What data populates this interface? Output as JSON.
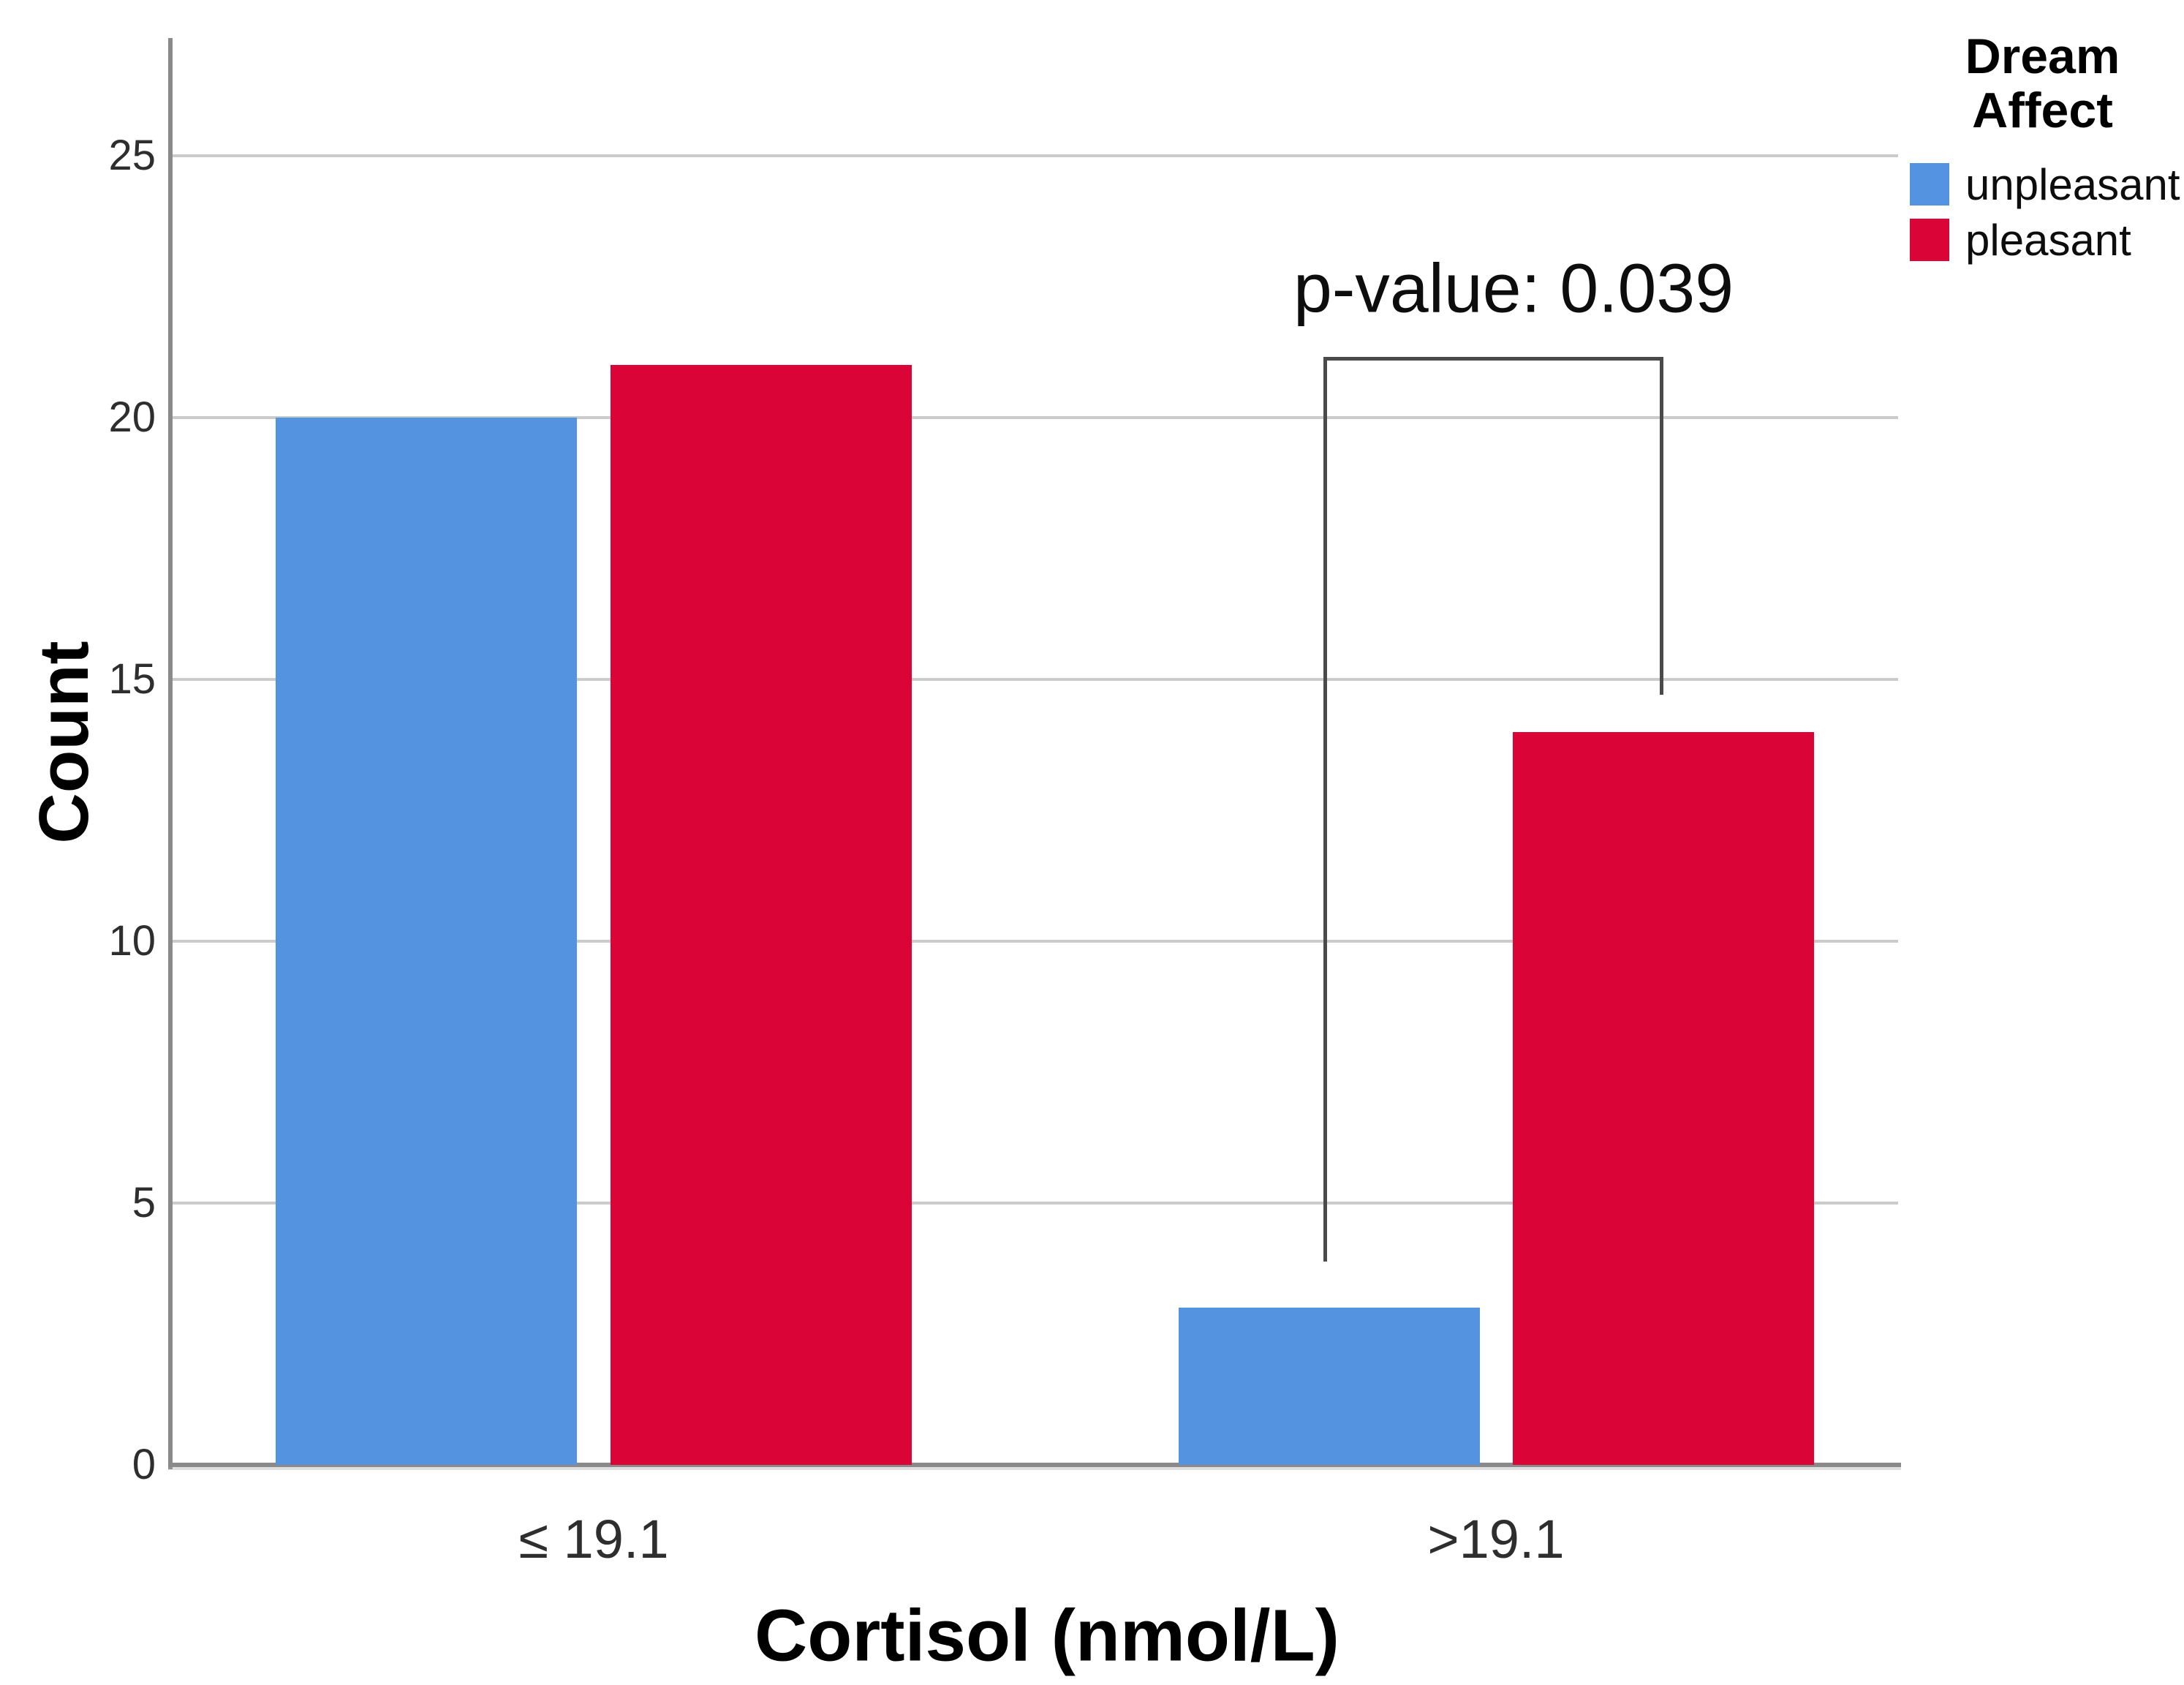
{
  "chart_data": {
    "type": "bar",
    "title": "",
    "categories": [
      "≤ 19.1",
      ">19.1"
    ],
    "series": [
      {
        "name": "unpleasant",
        "color": "#5493E0",
        "values": [
          20,
          3
        ]
      },
      {
        "name": "pleasant",
        "color": "#DB0437",
        "values": [
          21,
          14
        ]
      }
    ],
    "xlabel": "Cortisol (nmol/L)",
    "ylabel": "Count",
    "ylim": [
      0,
      27
    ],
    "yticks": [
      0,
      5,
      10,
      15,
      20,
      25
    ],
    "grid": "horizontal",
    "legend_position": "top-right",
    "annotation": {
      "text": "p-value: 0.039",
      "connects": [
        "unpleasant at >19.1",
        "pleasant at >19.1"
      ]
    }
  },
  "legend": {
    "title_line1": "Dream",
    "title_line2": "Affect"
  },
  "axes": {
    "y_title": "Count",
    "x_title": "Cortisol (nmol/L)"
  },
  "annotation": {
    "p_value_label": "p-value: 0.039"
  },
  "colors": {
    "axis": "#8a8a8a",
    "gridline": "#cbcbcb",
    "bracket": "#4a4a4a",
    "unpleasant": "#5493E0",
    "pleasant": "#DB0437"
  }
}
